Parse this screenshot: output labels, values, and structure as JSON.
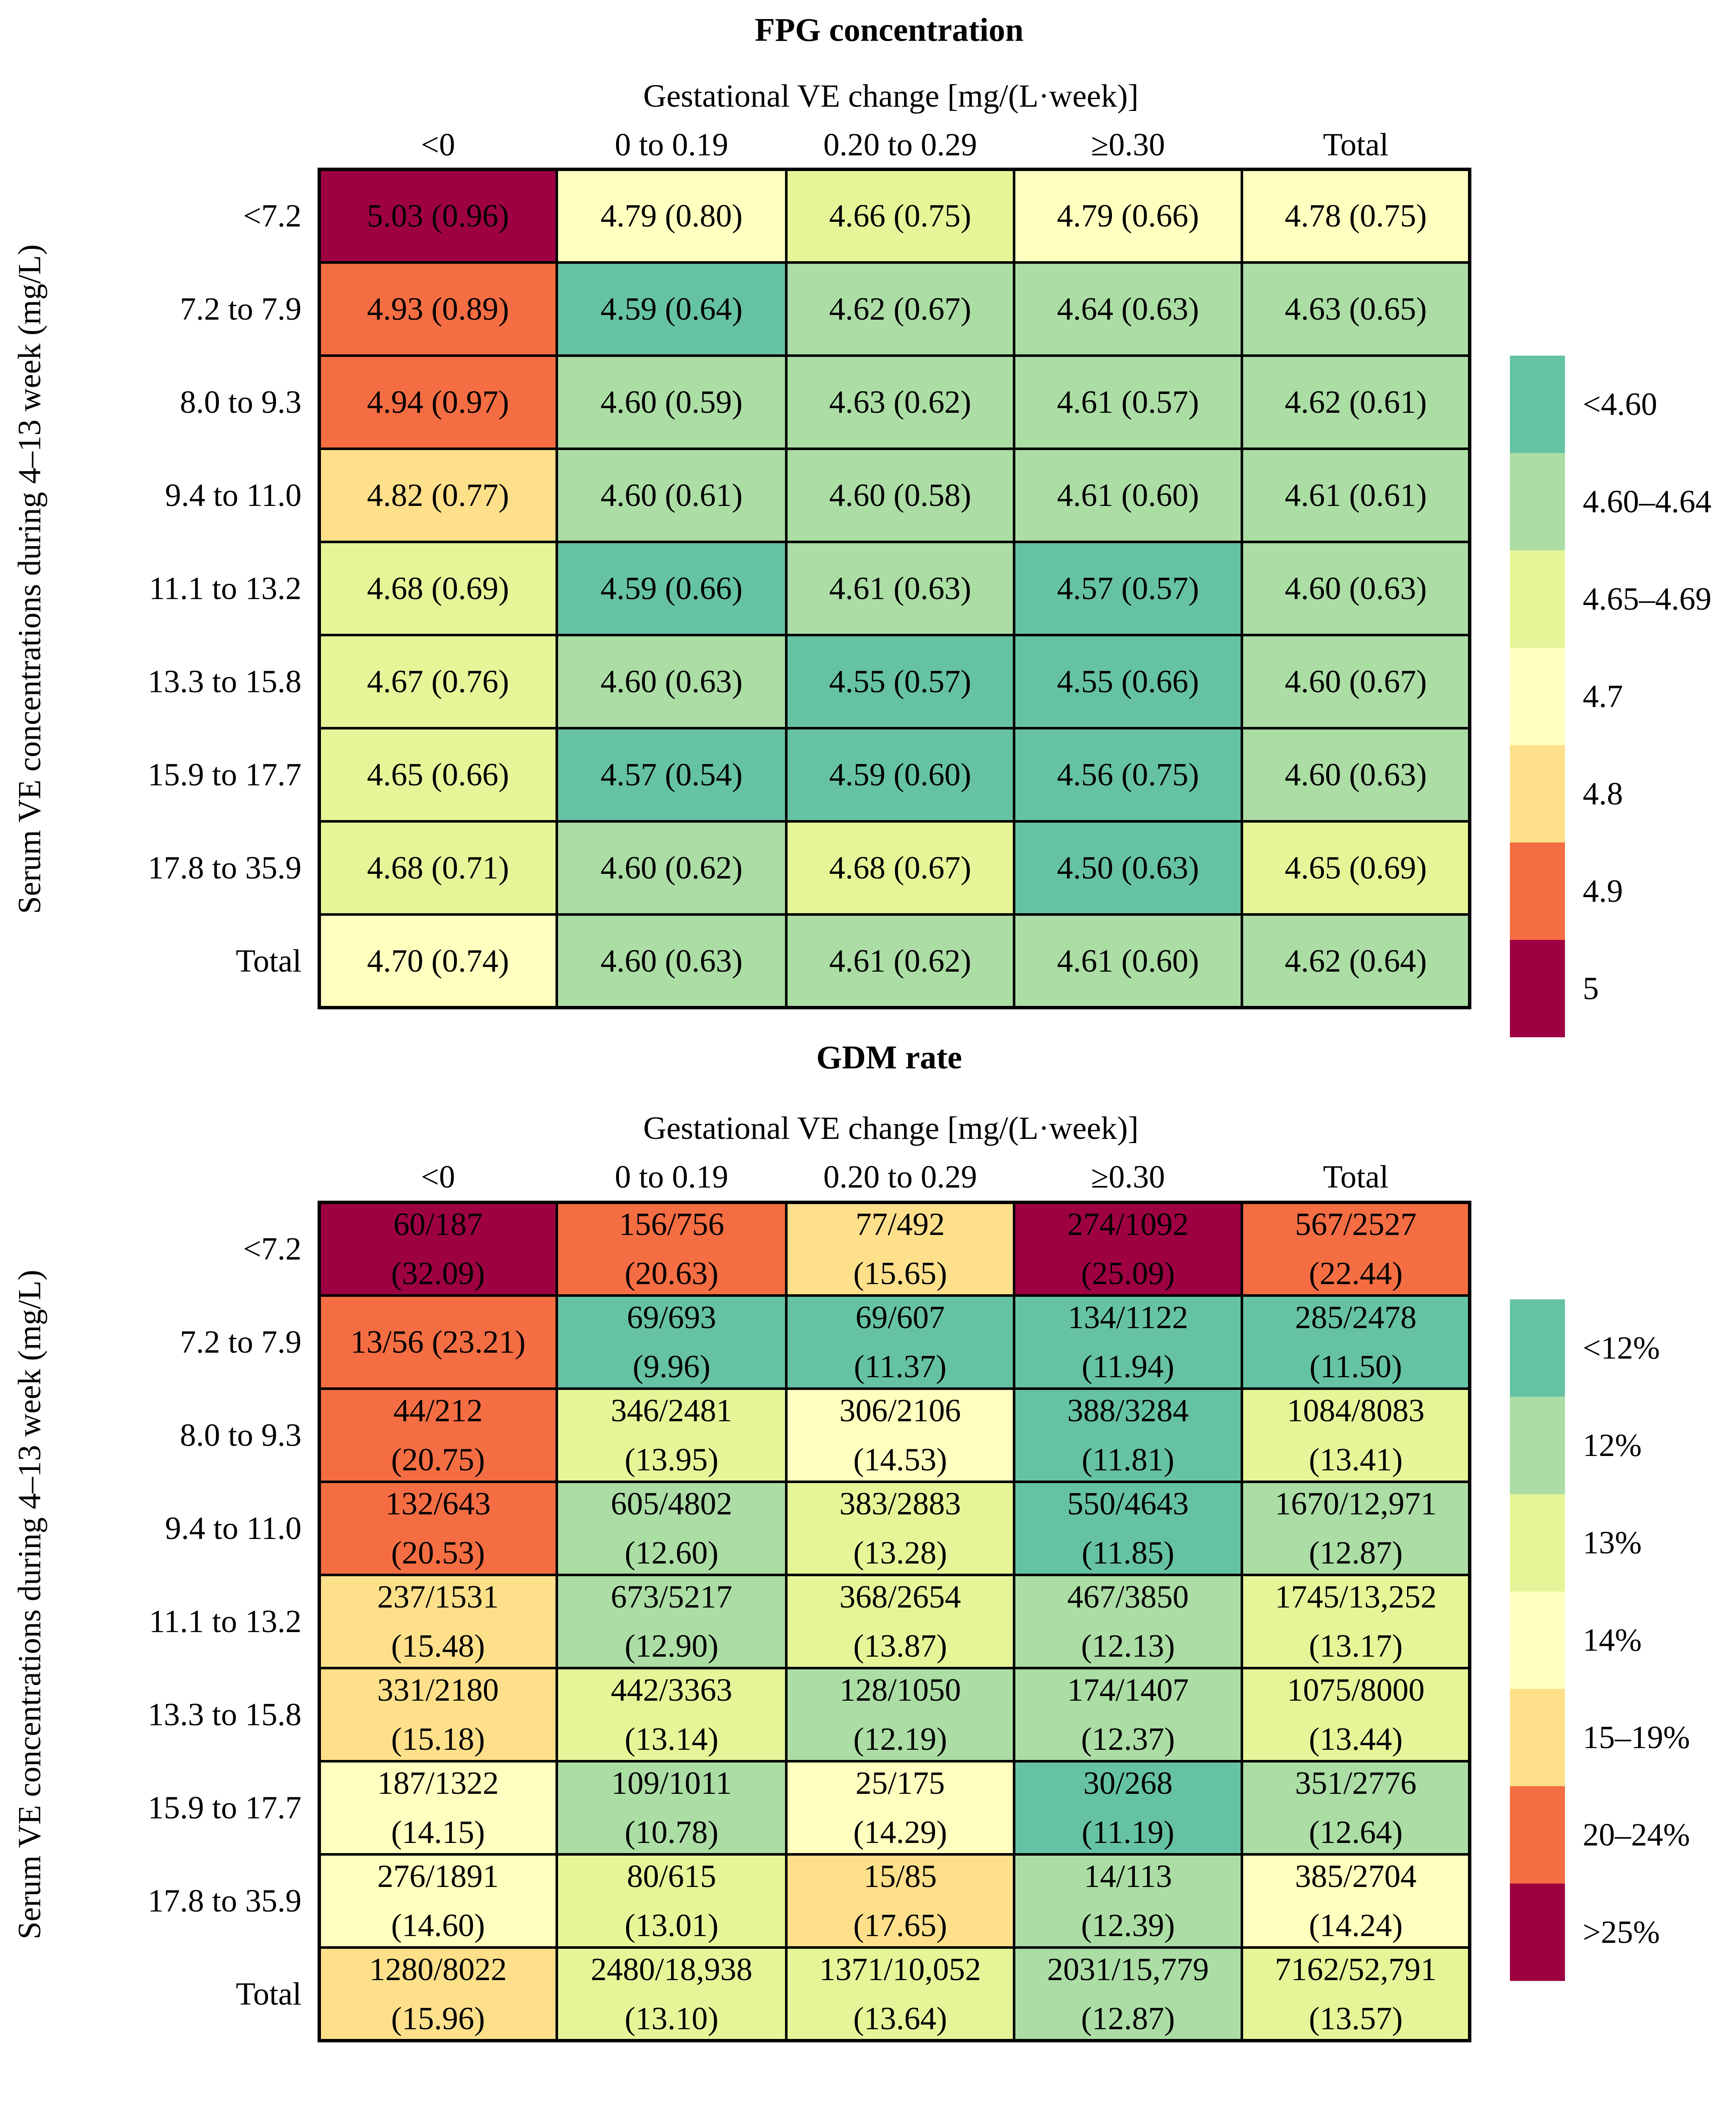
{
  "colors": {
    "lt_4_60": "#66c2a5",
    "4_60_4_64": "#abdda4",
    "4_65_4_69": "#e6f598",
    "4_7": "#ffffbf",
    "4_8": "#fee08b",
    "4_9": "#f46d43",
    "5": "#9e0142",
    "lt_12": "#66c2a5",
    "12": "#abdda4",
    "13": "#e6f598",
    "14": "#ffffbf",
    "15_19": "#fee08b",
    "20_24": "#f46d43",
    "gt_25": "#9e0142"
  },
  "chart_data": [
    {
      "type": "heatmap",
      "title": "FPG concentration",
      "xlabel": "Gestational VE change [mg/(L·week)]",
      "ylabel": "Serum VE concentrations during 4–13 week (mg/L)",
      "columns": [
        "<0",
        "0 to 0.19",
        "0.20 to 0.29",
        "≥0.30",
        "Total"
      ],
      "rows": [
        "<7.2",
        "7.2 to 7.9",
        "8.0 to 9.3",
        "9.4 to 11.0",
        "11.1 to 13.2",
        "13.3 to 15.8",
        "15.9 to 17.7",
        "17.8 to 35.9",
        "Total"
      ],
      "cells": [
        [
          "5.03 (0.96)",
          "4.79 (0.80)",
          "4.66 (0.75)",
          "4.79 (0.66)",
          "4.78 (0.75)"
        ],
        [
          "4.93 (0.89)",
          "4.59 (0.64)",
          "4.62 (0.67)",
          "4.64 (0.63)",
          "4.63 (0.65)"
        ],
        [
          "4.94 (0.97)",
          "4.60 (0.59)",
          "4.63 (0.62)",
          "4.61 (0.57)",
          "4.62 (0.61)"
        ],
        [
          "4.82 (0.77)",
          "4.60 (0.61)",
          "4.60 (0.58)",
          "4.61 (0.60)",
          "4.61 (0.61)"
        ],
        [
          "4.68 (0.69)",
          "4.59 (0.66)",
          "4.61 (0.63)",
          "4.57 (0.57)",
          "4.60 (0.63)"
        ],
        [
          "4.67 (0.76)",
          "4.60 (0.63)",
          "4.55 (0.57)",
          "4.55 (0.66)",
          "4.60 (0.67)"
        ],
        [
          "4.65 (0.66)",
          "4.57 (0.54)",
          "4.59 (0.60)",
          "4.56 (0.75)",
          "4.60 (0.63)"
        ],
        [
          "4.68 (0.71)",
          "4.60 (0.62)",
          "4.68 (0.67)",
          "4.50 (0.63)",
          "4.65 (0.69)"
        ],
        [
          "4.70 (0.74)",
          "4.60 (0.63)",
          "4.61 (0.62)",
          "4.61 (0.60)",
          "4.62 (0.64)"
        ]
      ],
      "cell_colors": [
        [
          "5",
          "4_7",
          "4_65_4_69",
          "4_7",
          "4_7"
        ],
        [
          "4_9",
          "lt_4_60",
          "4_60_4_64",
          "4_60_4_64",
          "4_60_4_64"
        ],
        [
          "4_9",
          "4_60_4_64",
          "4_60_4_64",
          "4_60_4_64",
          "4_60_4_64"
        ],
        [
          "4_8",
          "4_60_4_64",
          "4_60_4_64",
          "4_60_4_64",
          "4_60_4_64"
        ],
        [
          "4_65_4_69",
          "lt_4_60",
          "4_60_4_64",
          "lt_4_60",
          "4_60_4_64"
        ],
        [
          "4_65_4_69",
          "4_60_4_64",
          "lt_4_60",
          "lt_4_60",
          "4_60_4_64"
        ],
        [
          "4_65_4_69",
          "lt_4_60",
          "lt_4_60",
          "lt_4_60",
          "4_60_4_64"
        ],
        [
          "4_65_4_69",
          "4_60_4_64",
          "4_65_4_69",
          "lt_4_60",
          "4_65_4_69"
        ],
        [
          "4_7",
          "4_60_4_64",
          "4_60_4_64",
          "4_60_4_64",
          "4_60_4_64"
        ]
      ],
      "legend": [
        {
          "label": "<4.60",
          "color": "lt_4_60"
        },
        {
          "label": "4.60–4.64",
          "color": "4_60_4_64"
        },
        {
          "label": "4.65–4.69",
          "color": "4_65_4_69"
        },
        {
          "label": "4.7",
          "color": "4_7"
        },
        {
          "label": "4.8",
          "color": "4_8"
        },
        {
          "label": "4.9",
          "color": "4_9"
        },
        {
          "label": "5",
          "color": "5"
        }
      ]
    },
    {
      "type": "heatmap",
      "title": "GDM rate",
      "xlabel": "Gestational VE change [mg/(L·week)]",
      "ylabel": "Serum VE concentrations during 4–13 week (mg/L)",
      "columns": [
        "<0",
        "0 to 0.19",
        "0.20 to 0.29",
        "≥0.30",
        "Total"
      ],
      "rows": [
        "<7.2",
        "7.2 to 7.9",
        "8.0 to 9.3",
        "9.4 to 11.0",
        "11.1 to 13.2",
        "13.3 to 15.8",
        "15.9 to 17.7",
        "17.8 to 35.9",
        "Total"
      ],
      "cells": [
        [
          [
            "60/187",
            "(32.09)"
          ],
          [
            "156/756",
            "(20.63)"
          ],
          [
            "77/492",
            "(15.65)"
          ],
          [
            "274/1092",
            "(25.09)"
          ],
          [
            "567/2527",
            "(22.44)"
          ]
        ],
        [
          [
            "13/56 (23.21)"
          ],
          [
            "69/693",
            "(9.96)"
          ],
          [
            "69/607",
            "(11.37)"
          ],
          [
            "134/1122",
            "(11.94)"
          ],
          [
            "285/2478",
            "(11.50)"
          ]
        ],
        [
          [
            "44/212",
            "(20.75)"
          ],
          [
            "346/2481",
            "(13.95)"
          ],
          [
            "306/2106",
            "(14.53)"
          ],
          [
            "388/3284",
            "(11.81)"
          ],
          [
            "1084/8083",
            "(13.41)"
          ]
        ],
        [
          [
            "132/643",
            "(20.53)"
          ],
          [
            "605/4802",
            "(12.60)"
          ],
          [
            "383/2883",
            "(13.28)"
          ],
          [
            "550/4643",
            "(11.85)"
          ],
          [
            "1670/12,971",
            "(12.87)"
          ]
        ],
        [
          [
            "237/1531",
            "(15.48)"
          ],
          [
            "673/5217",
            "(12.90)"
          ],
          [
            "368/2654",
            "(13.87)"
          ],
          [
            "467/3850",
            "(12.13)"
          ],
          [
            "1745/13,252",
            "(13.17)"
          ]
        ],
        [
          [
            "331/2180",
            "(15.18)"
          ],
          [
            "442/3363",
            "(13.14)"
          ],
          [
            "128/1050",
            "(12.19)"
          ],
          [
            "174/1407",
            "(12.37)"
          ],
          [
            "1075/8000",
            "(13.44)"
          ]
        ],
        [
          [
            "187/1322",
            "(14.15)"
          ],
          [
            "109/1011",
            "(10.78)"
          ],
          [
            "25/175",
            "(14.29)"
          ],
          [
            "30/268",
            "(11.19)"
          ],
          [
            "351/2776",
            "(12.64)"
          ]
        ],
        [
          [
            "276/1891",
            "(14.60)"
          ],
          [
            "80/615",
            "(13.01)"
          ],
          [
            "15/85",
            "(17.65)"
          ],
          [
            "14/113",
            "(12.39)"
          ],
          [
            "385/2704",
            "(14.24)"
          ]
        ],
        [
          [
            "1280/8022",
            "(15.96)"
          ],
          [
            "2480/18,938",
            "(13.10)"
          ],
          [
            "1371/10,052",
            "(13.64)"
          ],
          [
            "2031/15,779",
            "(12.87)"
          ],
          [
            "7162/52,791",
            "(13.57)"
          ]
        ]
      ],
      "cell_colors": [
        [
          "gt_25",
          "20_24",
          "15_19",
          "gt_25",
          "20_24"
        ],
        [
          "20_24",
          "lt_12",
          "lt_12",
          "lt_12",
          "lt_12"
        ],
        [
          "20_24",
          "13",
          "14",
          "lt_12",
          "13"
        ],
        [
          "20_24",
          "12",
          "13",
          "lt_12",
          "12"
        ],
        [
          "15_19",
          "12",
          "13",
          "12",
          "13"
        ],
        [
          "15_19",
          "13",
          "12",
          "12",
          "13"
        ],
        [
          "14",
          "12",
          "14",
          "lt_12",
          "12"
        ],
        [
          "14",
          "13",
          "15_19",
          "12",
          "14"
        ],
        [
          "15_19",
          "13",
          "13",
          "12",
          "13"
        ]
      ],
      "legend": [
        {
          "label": "<12%",
          "color": "lt_12"
        },
        {
          "label": "12%",
          "color": "12"
        },
        {
          "label": "13%",
          "color": "13"
        },
        {
          "label": "14%",
          "color": "14"
        },
        {
          "label": "15–19%",
          "color": "15_19"
        },
        {
          "label": "20–24%",
          "color": "20_24"
        },
        {
          "label": ">25%",
          "color": "gt_25"
        }
      ]
    }
  ]
}
